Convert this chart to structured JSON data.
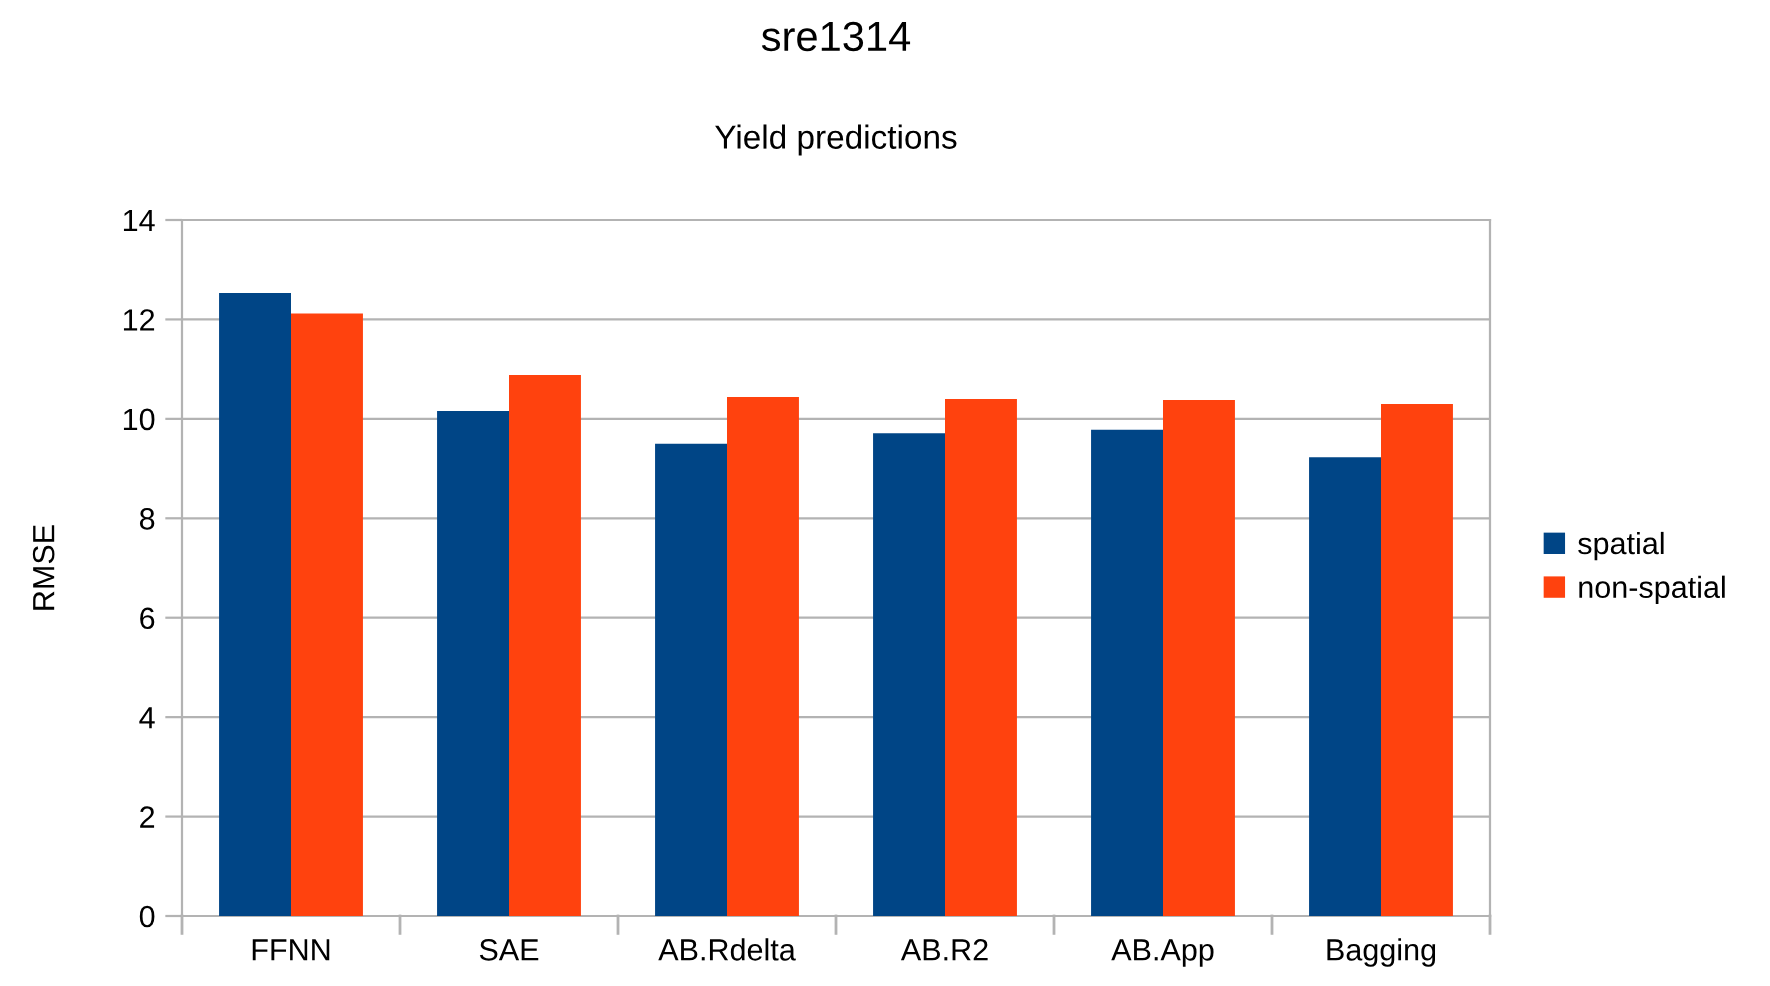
{
  "chart_data": {
    "type": "bar",
    "title": "sre1314",
    "subtitle": "Yield predictions",
    "ylabel": "RMSE",
    "categories": [
      "FFNN",
      "SAE",
      "AB.Rdelta",
      "AB.R2",
      "AB.App",
      "Bagging"
    ],
    "series": [
      {
        "name": "spatial",
        "color": "#004586",
        "values": [
          12.53,
          10.16,
          9.5,
          9.71,
          9.78,
          9.23
        ]
      },
      {
        "name": "non-spatial",
        "color": "#ff420e",
        "values": [
          12.12,
          10.88,
          10.44,
          10.4,
          10.38,
          10.3
        ]
      }
    ],
    "ylim": [
      0,
      14
    ],
    "yticks": [
      0,
      2,
      4,
      6,
      8,
      10,
      12,
      14
    ],
    "grid": "y",
    "legend": "right"
  }
}
